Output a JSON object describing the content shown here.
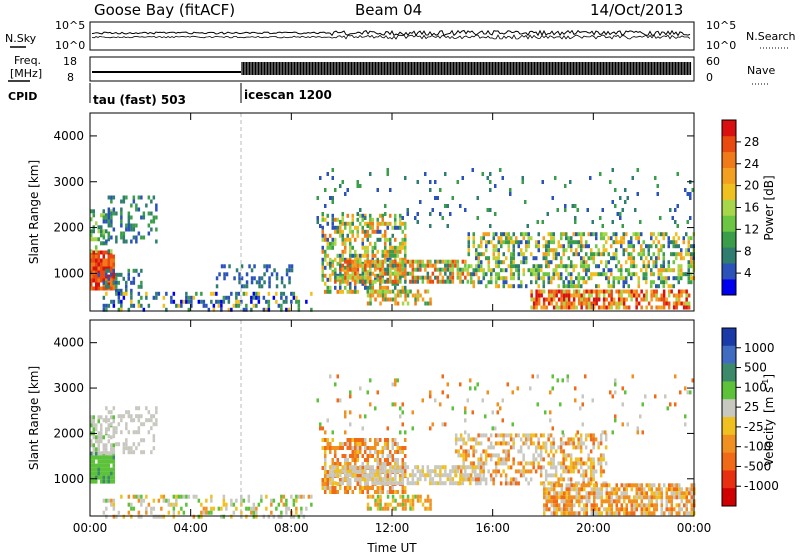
{
  "header": {
    "station": "Goose Bay (fitACF)",
    "beam": "Beam 04",
    "date": "14/Oct/2013"
  },
  "side_labels": {
    "nsky": "N.Sky",
    "nsearch": "N.Search",
    "freq_line1": "Freq.",
    "freq_line2": "[MHz]",
    "nave": "Nave",
    "cpid": "CPID"
  },
  "noise_panel": {
    "left_ticks": [
      "10^5",
      "10^0"
    ],
    "right_ticks": [
      "10^5",
      "10^0"
    ]
  },
  "freq_panel": {
    "left_ticks": [
      "18",
      "8"
    ],
    "right_ticks": [
      "60",
      "0"
    ]
  },
  "cpid_segments": [
    {
      "label": "tau (fast) 503",
      "start_h": 0
    },
    {
      "label": "icescan 1200",
      "start_h": 6
    }
  ],
  "power_colorbar": {
    "label": "Power [dB]",
    "ticks": [
      "28",
      "24",
      "20",
      "16",
      "12",
      "8",
      "4"
    ],
    "colors": [
      "#0000ee",
      "#2a52b8",
      "#2e7d6e",
      "#3a9d4a",
      "#6cc644",
      "#a8d64a",
      "#f0c020",
      "#f3a020",
      "#f07a18",
      "#e84a10",
      "#d81010"
    ]
  },
  "velocity_colorbar": {
    "label_main": "Velocity",
    "label_unit": "[m s",
    "label_exp": "-1",
    "label_end": "]",
    "ticks": [
      "1000",
      "500",
      "100",
      "25",
      "-25",
      "-100",
      "-500",
      "-1000"
    ],
    "colors": [
      "#1a3aa8",
      "#3f6cc0",
      "#3d8a6a",
      "#5cc23a",
      "#c8c8c0",
      "#f0c020",
      "#f09020",
      "#f06a18",
      "#e83010",
      "#d00000"
    ]
  },
  "chart_data": {
    "type": "heatmap",
    "xlabel": "Time UT",
    "ylabel": "Slant Range [km]",
    "x_ticks": [
      "00:00",
      "04:00",
      "08:00",
      "12:00",
      "16:00",
      "20:00",
      "00:00"
    ],
    "y_ticks": [
      "1000",
      "2000",
      "3000",
      "4000"
    ],
    "xlim_hours": [
      0,
      24
    ],
    "ylim_km": [
      180,
      4500
    ],
    "panels": [
      {
        "name": "Power [dB]",
        "scatter_regions": [
          {
            "t0": 0.0,
            "t1": 0.9,
            "r0": 700,
            "r1": 1500,
            "density": 0.95,
            "levels": [
              8,
              9,
              10,
              9,
              8
            ]
          },
          {
            "t0": 0.0,
            "t1": 0.8,
            "r0": 1500,
            "r1": 2400,
            "density": 0.45,
            "levels": [
              2,
              3,
              4,
              5
            ]
          },
          {
            "t0": 0.5,
            "t1": 2.6,
            "r0": 1700,
            "r1": 2700,
            "density": 0.35,
            "levels": [
              1,
              2,
              3
            ]
          },
          {
            "t0": 0.3,
            "t1": 2.0,
            "r0": 600,
            "r1": 1100,
            "density": 0.3,
            "levels": [
              1,
              2,
              3
            ]
          },
          {
            "t0": 0.5,
            "t1": 8.8,
            "r0": 200,
            "r1": 600,
            "density": 0.35,
            "levels": [
              0,
              1,
              1,
              2,
              3,
              6
            ]
          },
          {
            "t0": 5.0,
            "t1": 8.0,
            "r0": 700,
            "r1": 1200,
            "density": 0.3,
            "levels": [
              1,
              1,
              2
            ]
          },
          {
            "t0": 9.2,
            "t1": 12.5,
            "r0": 600,
            "r1": 2300,
            "density": 0.55,
            "levels": [
              1,
              2,
              3,
              4,
              5,
              6,
              7,
              8
            ]
          },
          {
            "t0": 9.5,
            "t1": 15.0,
            "r0": 800,
            "r1": 1300,
            "density": 0.7,
            "levels": [
              2,
              4,
              5,
              7,
              8,
              9
            ]
          },
          {
            "t0": 11.0,
            "t1": 13.5,
            "r0": 350,
            "r1": 650,
            "density": 0.55,
            "levels": [
              3,
              5,
              7,
              8
            ]
          },
          {
            "t0": 15.0,
            "t1": 24.0,
            "r0": 700,
            "r1": 1900,
            "density": 0.5,
            "levels": [
              1,
              2,
              3,
              4,
              5,
              6,
              7
            ]
          },
          {
            "t0": 17.5,
            "t1": 23.8,
            "r0": 220,
            "r1": 650,
            "density": 0.7,
            "levels": [
              5,
              7,
              8,
              9,
              10
            ]
          },
          {
            "t0": 9.0,
            "t1": 24.0,
            "r0": 2000,
            "r1": 3300,
            "density": 0.06,
            "levels": [
              1,
              2,
              3
            ]
          }
        ]
      },
      {
        "name": "Velocity",
        "scatter_regions": [
          {
            "t0": 0.0,
            "t1": 0.9,
            "r0": 900,
            "r1": 1600,
            "density": 0.95,
            "levels": [
              3,
              3,
              2,
              3
            ]
          },
          {
            "t0": 0.0,
            "t1": 0.9,
            "r0": 1600,
            "r1": 2400,
            "density": 0.6,
            "levels": [
              4,
              4,
              4,
              3
            ]
          },
          {
            "t0": 0.5,
            "t1": 2.6,
            "r0": 1600,
            "r1": 2600,
            "density": 0.3,
            "levels": [
              4,
              4
            ]
          },
          {
            "t0": 0.5,
            "t1": 8.8,
            "r0": 200,
            "r1": 650,
            "density": 0.35,
            "levels": [
              4,
              4,
              5,
              6,
              3
            ]
          },
          {
            "t0": 9.2,
            "t1": 12.5,
            "r0": 700,
            "r1": 1900,
            "density": 0.6,
            "levels": [
              6,
              7,
              7,
              6,
              5,
              4
            ]
          },
          {
            "t0": 9.5,
            "t1": 15.5,
            "r0": 900,
            "r1": 1300,
            "density": 0.7,
            "levels": [
              4,
              4,
              4,
              5
            ]
          },
          {
            "t0": 11.0,
            "t1": 13.5,
            "r0": 350,
            "r1": 650,
            "density": 0.55,
            "levels": [
              6,
              6,
              5,
              3
            ]
          },
          {
            "t0": 14.5,
            "t1": 20.5,
            "r0": 900,
            "r1": 2000,
            "density": 0.5,
            "levels": [
              4,
              4,
              5,
              6,
              7
            ]
          },
          {
            "t0": 18.0,
            "t1": 24.0,
            "r0": 250,
            "r1": 900,
            "density": 0.75,
            "levels": [
              6,
              6,
              7,
              5,
              4
            ]
          },
          {
            "t0": 9.0,
            "t1": 24.0,
            "r0": 2000,
            "r1": 3300,
            "density": 0.06,
            "levels": [
              4,
              6,
              7,
              3
            ]
          }
        ]
      }
    ],
    "grid": false,
    "legend": "colorbars right"
  }
}
